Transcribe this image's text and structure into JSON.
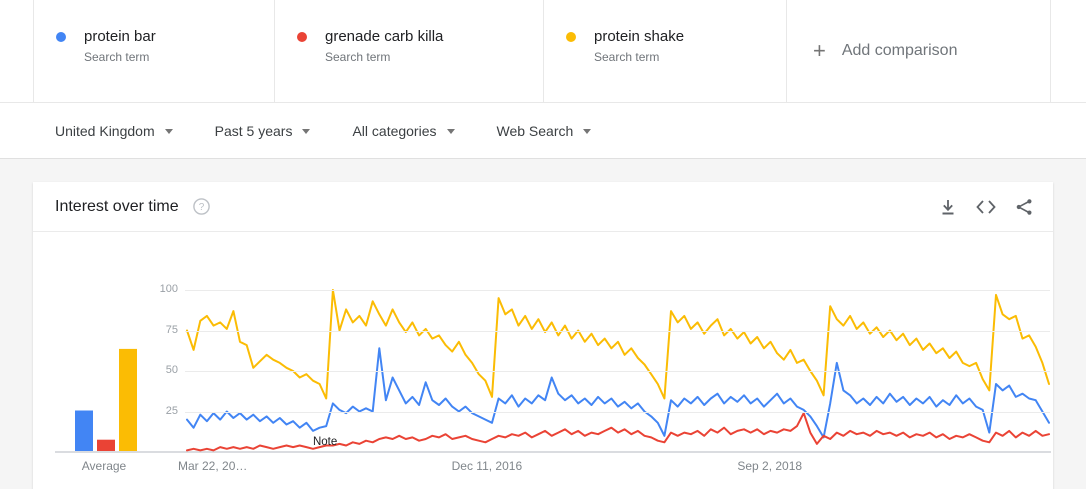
{
  "comparison_bar": {
    "terms": [
      {
        "label": "protein bar",
        "sublabel": "Search term",
        "color": "#4285f4"
      },
      {
        "label": "grenade carb killa",
        "sublabel": "Search term",
        "color": "#ea4335"
      },
      {
        "label": "protein shake",
        "sublabel": "Search term",
        "color": "#fbbc04"
      }
    ],
    "add_button": {
      "label": "Add comparison",
      "plus_glyph": "+"
    }
  },
  "filters": [
    {
      "label": "United Kingdom"
    },
    {
      "label": "Past 5 years"
    },
    {
      "label": "All categories"
    },
    {
      "label": "Web Search"
    }
  ],
  "card": {
    "title": "Interest over time",
    "help_glyph": "?",
    "action_icons": [
      "download-icon",
      "embed-icon",
      "share-icon"
    ]
  },
  "chart_data": {
    "type": "line",
    "title": "Interest over time",
    "region": "United Kingdom",
    "time_range": "Past 5 years",
    "ylim": [
      0,
      100
    ],
    "y_ticks": [
      100,
      75,
      50,
      25
    ],
    "grid": "horizontal",
    "x_tick_labels": [
      "Mar 22, 20…",
      "Dec 11, 2016",
      "Sep 2, 2018"
    ],
    "x_tick_positions": [
      0.0,
      0.349,
      0.676
    ],
    "note": {
      "label": "Note",
      "position": 0.162
    },
    "average_panel": {
      "label": "Average"
    },
    "sampling": "search interest 0-100, ~2-week intervals, Mar 2015 - Mar 2020",
    "series": [
      {
        "name": "protein bar",
        "color": "#4285f4",
        "average": 25,
        "values": [
          20,
          15,
          23,
          19,
          24,
          20,
          25,
          21,
          24,
          20,
          23,
          19,
          22,
          18,
          21,
          17,
          19,
          15,
          18,
          13,
          15,
          16,
          30,
          26,
          24,
          28,
          25,
          27,
          25,
          64,
          32,
          46,
          38,
          30,
          34,
          29,
          43,
          32,
          29,
          33,
          28,
          25,
          28,
          24,
          22,
          20,
          18,
          33,
          30,
          35,
          28,
          33,
          30,
          35,
          32,
          46,
          36,
          32,
          35,
          30,
          33,
          29,
          34,
          30,
          33,
          28,
          31,
          27,
          30,
          25,
          22,
          18,
          10,
          32,
          28,
          33,
          30,
          34,
          29,
          33,
          36,
          30,
          34,
          31,
          35,
          30,
          33,
          28,
          32,
          36,
          30,
          33,
          28,
          26,
          22,
          16,
          9,
          30,
          55,
          38,
          35,
          30,
          33,
          29,
          34,
          30,
          36,
          31,
          34,
          29,
          33,
          30,
          34,
          28,
          32,
          29,
          35,
          30,
          33,
          28,
          26,
          12,
          42,
          38,
          41,
          34,
          36,
          33,
          32,
          25,
          18
        ]
      },
      {
        "name": "grenade carb killa",
        "color": "#ea4335",
        "average": 7,
        "values": [
          1,
          2,
          1,
          2,
          1,
          3,
          2,
          3,
          2,
          3,
          2,
          4,
          3,
          2,
          3,
          4,
          3,
          4,
          3,
          2,
          3,
          4,
          4,
          5,
          4,
          6,
          5,
          7,
          6,
          8,
          9,
          8,
          10,
          8,
          9,
          7,
          8,
          10,
          9,
          11,
          8,
          9,
          10,
          8,
          7,
          6,
          8,
          10,
          9,
          11,
          10,
          12,
          9,
          11,
          13,
          10,
          12,
          14,
          11,
          13,
          10,
          12,
          11,
          13,
          15,
          12,
          14,
          11,
          13,
          10,
          9,
          7,
          6,
          12,
          10,
          12,
          11,
          13,
          10,
          14,
          12,
          15,
          11,
          13,
          14,
          12,
          14,
          11,
          13,
          12,
          14,
          13,
          16,
          24,
          12,
          5,
          10,
          8,
          12,
          10,
          13,
          11,
          12,
          10,
          13,
          11,
          12,
          10,
          12,
          9,
          11,
          10,
          12,
          9,
          11,
          8,
          10,
          9,
          11,
          9,
          7,
          6,
          12,
          10,
          13,
          9,
          12,
          10,
          13,
          10,
          11
        ]
      },
      {
        "name": "protein shake",
        "color": "#fbbc04",
        "average": 63,
        "values": [
          75,
          63,
          81,
          84,
          78,
          80,
          76,
          87,
          68,
          66,
          52,
          56,
          60,
          57,
          55,
          52,
          50,
          46,
          48,
          44,
          42,
          33,
          100,
          75,
          88,
          80,
          84,
          78,
          93,
          85,
          78,
          88,
          80,
          74,
          80,
          72,
          76,
          70,
          72,
          66,
          62,
          68,
          60,
          55,
          48,
          44,
          34,
          95,
          85,
          88,
          78,
          84,
          76,
          82,
          74,
          80,
          72,
          78,
          70,
          75,
          68,
          73,
          66,
          70,
          64,
          68,
          60,
          64,
          58,
          54,
          48,
          42,
          33,
          87,
          80,
          84,
          76,
          80,
          73,
          78,
          82,
          72,
          76,
          70,
          74,
          67,
          71,
          64,
          68,
          61,
          57,
          63,
          55,
          57,
          50,
          44,
          35,
          90,
          82,
          78,
          84,
          76,
          80,
          73,
          77,
          71,
          75,
          69,
          73,
          66,
          70,
          63,
          67,
          61,
          64,
          58,
          62,
          55,
          53,
          55,
          45,
          38,
          97,
          85,
          82,
          84,
          70,
          72,
          65,
          55,
          42
        ]
      }
    ]
  }
}
